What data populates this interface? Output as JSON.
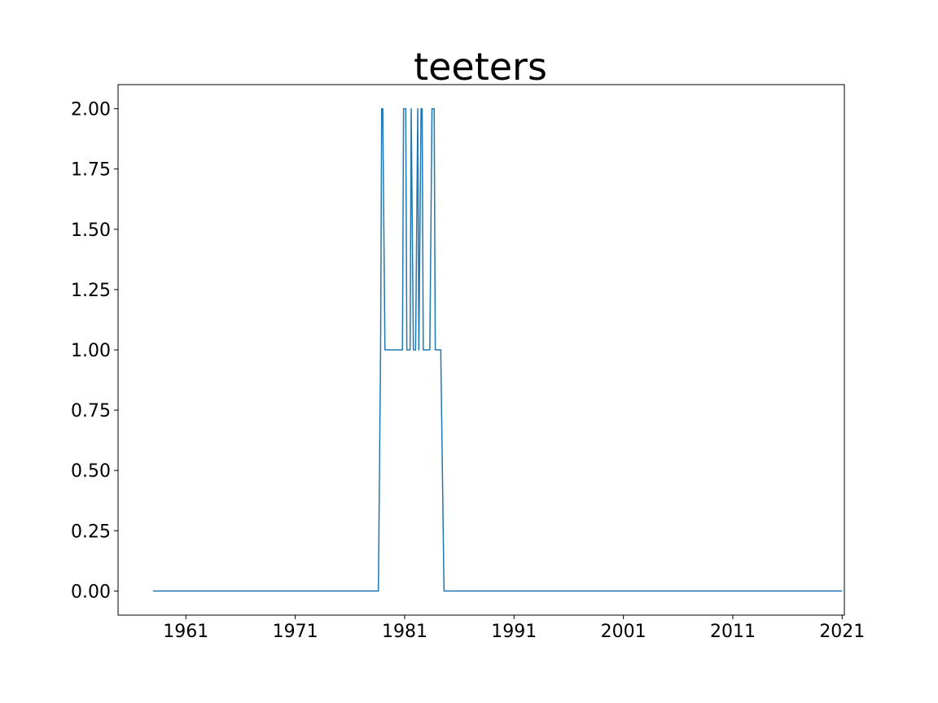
{
  "chart_data": {
    "type": "line",
    "title": "teeters",
    "xlabel": "",
    "ylabel": "",
    "xlim": [
      1954.8,
      2021.2
    ],
    "ylim": [
      -0.1,
      2.1
    ],
    "grid": false,
    "x_ticks": [
      1961,
      1971,
      1981,
      1991,
      2001,
      2011,
      2021
    ],
    "x_tick_labels": [
      "1961",
      "1971",
      "1981",
      "1991",
      "2001",
      "2011",
      "2021"
    ],
    "y_ticks": [
      0,
      0.25,
      0.5,
      0.75,
      1.0,
      1.25,
      1.5,
      1.75,
      2.0
    ],
    "y_tick_labels": [
      "0.00",
      "0.25",
      "0.50",
      "0.75",
      "1.00",
      "1.25",
      "1.50",
      "1.75",
      "2.00"
    ],
    "color": "#1f77b4",
    "series": [
      {
        "x": [
          1958.0,
          1978.6,
          1978.8,
          1978.9,
          1979.0,
          1979.2,
          1980.8,
          1980.9,
          1981.1,
          1981.2,
          1981.5,
          1981.6,
          1981.8,
          1982.0,
          1982.2,
          1982.3,
          1982.5,
          1982.6,
          1982.7,
          1982.8,
          1983.3,
          1983.5,
          1983.7,
          1983.8,
          1984.3,
          1984.6,
          2021.0
        ],
        "y": [
          0,
          0,
          1,
          2,
          2,
          1,
          1,
          2,
          2,
          1,
          1,
          2,
          1,
          1,
          2,
          1,
          2,
          2,
          1,
          1,
          1,
          2,
          2,
          1,
          1,
          0,
          0
        ]
      }
    ]
  }
}
